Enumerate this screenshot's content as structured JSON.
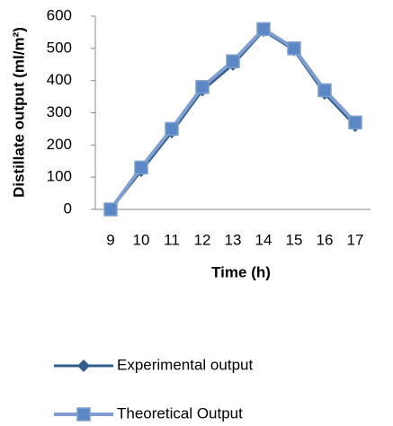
{
  "chart_data": {
    "type": "line",
    "x_label": "Time (h)",
    "y_label": "Distillate output (ml/m²)",
    "categories": [
      "9",
      "10",
      "11",
      "12",
      "13",
      "14",
      "15",
      "16",
      "17"
    ],
    "series": [
      {
        "name": "Experimental output",
        "color": "#2f5d8e",
        "marker": "diamond",
        "values": [
          0,
          120,
          240,
          370,
          450,
          555,
          495,
          360,
          260
        ]
      },
      {
        "name": "Theoretical Output",
        "color": "#7e9fd0",
        "marker": "square",
        "values": [
          0,
          130,
          250,
          380,
          460,
          560,
          500,
          370,
          270
        ]
      }
    ],
    "ylim": [
      0,
      600
    ],
    "yticks": [
      0,
      100,
      200,
      300,
      400,
      500,
      600
    ],
    "grid": false
  }
}
